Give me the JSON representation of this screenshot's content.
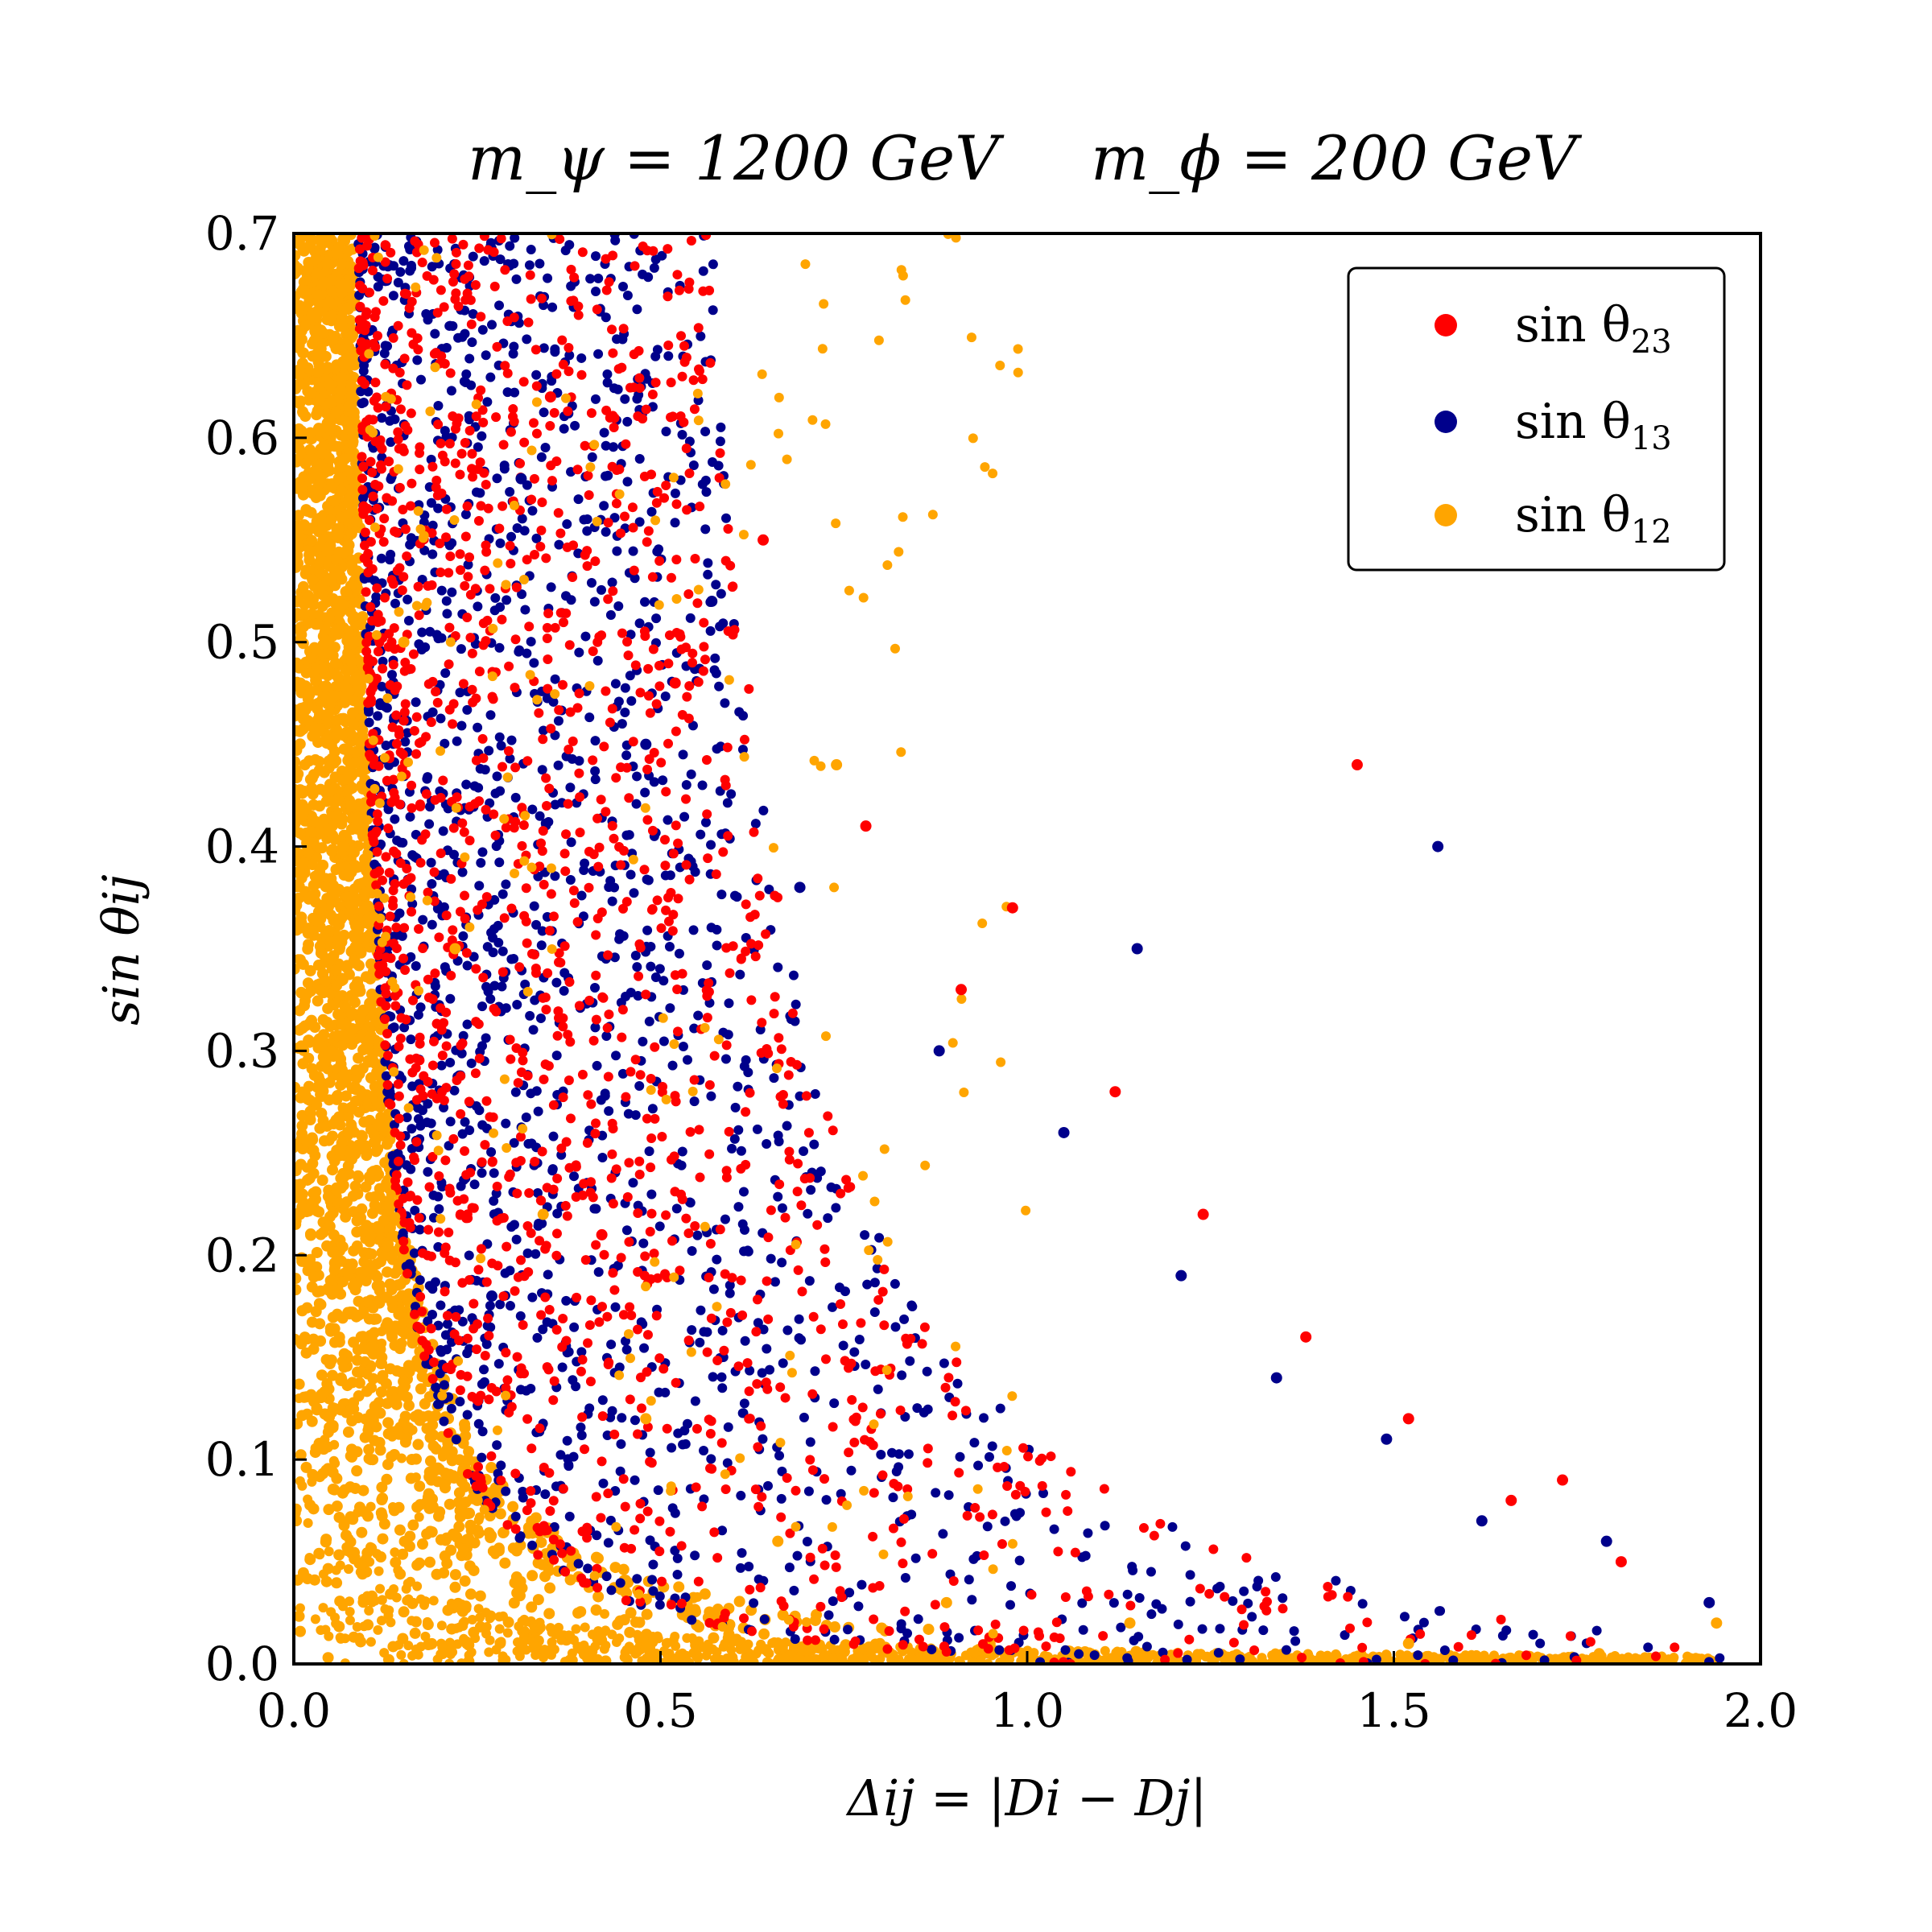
{
  "chart_data": {
    "type": "scatter",
    "title_left": "m_ψ = 1200 GeV",
    "title_right": "m_ϕ = 200 GeV",
    "xlabel": "Δij = |Di − Dj|",
    "ylabel": "sin θij",
    "xlim": [
      0.0,
      2.0
    ],
    "ylim": [
      0.0,
      0.7
    ],
    "x_ticks": [
      "0.0",
      "0.5",
      "1.0",
      "1.5",
      "2.0"
    ],
    "y_ticks": [
      "0.0",
      "0.1",
      "0.2",
      "0.3",
      "0.4",
      "0.5",
      "0.6",
      "0.7"
    ],
    "legend_position": "top-right",
    "grid": false,
    "series": [
      {
        "name": "sin θ23",
        "name_main": "sin θ",
        "name_sub": "23",
        "color": "#ff0000",
        "extent": 1.9,
        "x": [
          0.35,
          0.52,
          0.78,
          0.91,
          1.12,
          1.24,
          1.38,
          1.52,
          1.66,
          1.81,
          0.64,
          0.98,
          1.45,
          1.73,
          0.42
        ],
        "y": [
          0.62,
          0.48,
          0.41,
          0.33,
          0.28,
          0.22,
          0.16,
          0.12,
          0.08,
          0.05,
          0.55,
          0.37,
          0.44,
          0.09,
          0.21
        ]
      },
      {
        "name": "sin θ13",
        "name_main": "sin θ",
        "name_sub": "13",
        "color": "#00008b",
        "extent": 1.97,
        "x": [
          0.31,
          0.48,
          0.69,
          0.88,
          1.05,
          1.21,
          1.34,
          1.49,
          1.62,
          1.79,
          1.93,
          0.57,
          1.15,
          1.56,
          0.27
        ],
        "y": [
          0.58,
          0.45,
          0.38,
          0.3,
          0.26,
          0.19,
          0.14,
          0.11,
          0.07,
          0.06,
          0.03,
          0.52,
          0.35,
          0.4,
          0.18
        ]
      },
      {
        "name": "sin θ12",
        "name_main": "sin θ",
        "name_sub": "12",
        "color": "#ffa500",
        "extent": 1.95,
        "x": [
          0.08,
          0.15,
          0.22,
          0.34,
          0.48,
          0.66,
          0.89,
          1.14,
          1.52,
          1.78,
          0.05,
          0.12,
          0.25,
          0.74,
          1.94
        ],
        "y": [
          0.65,
          0.5,
          0.35,
          0.22,
          0.12,
          0.06,
          0.03,
          0.02,
          0.01,
          0.005,
          0.3,
          0.15,
          0.08,
          0.44,
          0.02
        ]
      }
    ]
  }
}
